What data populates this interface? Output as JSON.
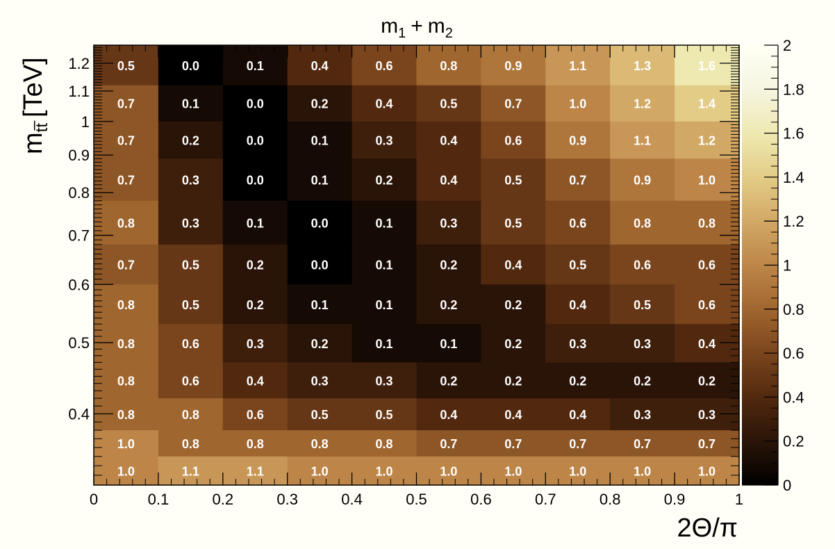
{
  "chart_data": {
    "type": "heatmap",
    "title": "m₁ + m₂",
    "title_parts": {
      "main1": "m",
      "sub1": "1",
      "plus": "+",
      "main2": "m",
      "sub2": "2"
    },
    "xlabel": "2Θ/π",
    "ylabel": "m_tt [TeV]",
    "ylabel_parts": {
      "main": "m",
      "sub": "tt̅",
      "unit": "[TeV]"
    },
    "x_edges": [
      0,
      0.1,
      0.2,
      0.3,
      0.4,
      0.5,
      0.6,
      0.7,
      0.8,
      0.9,
      1.0
    ],
    "xlim": [
      0,
      1
    ],
    "x_ticks": [
      0,
      0.1,
      0.2,
      0.3,
      0.4,
      0.5,
      0.6,
      0.7,
      0.8,
      0.9,
      1
    ],
    "x_tick_labels": [
      "0",
      "0.1",
      "0.2",
      "0.3",
      "0.4",
      "0.5",
      "0.6",
      "0.7",
      "0.8",
      "0.9",
      "1"
    ],
    "y_scale": "log",
    "ylim": [
      0.32,
      1.27
    ],
    "y_edges": [
      0.32,
      0.35,
      0.38,
      0.42,
      0.47,
      0.53,
      0.6,
      0.68,
      0.78,
      0.89,
      1.0,
      1.12,
      1.27
    ],
    "y_ticks": [
      0.4,
      0.5,
      0.6,
      0.7,
      0.8,
      0.9,
      1.0,
      1.1,
      1.2
    ],
    "y_tick_labels": [
      "0.4",
      "0.5",
      "0.6",
      "0.7",
      "0.8",
      "0.9",
      "1",
      "1.1",
      "1.2"
    ],
    "values": [
      [
        0.5,
        0.0,
        0.1,
        0.4,
        0.6,
        0.8,
        0.9,
        1.1,
        1.3,
        1.6
      ],
      [
        0.7,
        0.1,
        0.0,
        0.2,
        0.4,
        0.5,
        0.7,
        1.0,
        1.2,
        1.4
      ],
      [
        0.7,
        0.2,
        0.0,
        0.1,
        0.3,
        0.4,
        0.6,
        0.9,
        1.1,
        1.2
      ],
      [
        0.7,
        0.3,
        0.0,
        0.1,
        0.2,
        0.4,
        0.5,
        0.7,
        0.9,
        1.0
      ],
      [
        0.8,
        0.3,
        0.1,
        0.0,
        0.1,
        0.3,
        0.5,
        0.6,
        0.8,
        0.8
      ],
      [
        0.7,
        0.5,
        0.2,
        0.0,
        0.1,
        0.2,
        0.4,
        0.5,
        0.6,
        0.6
      ],
      [
        0.8,
        0.5,
        0.2,
        0.1,
        0.1,
        0.2,
        0.2,
        0.4,
        0.5,
        0.6
      ],
      [
        0.8,
        0.6,
        0.3,
        0.2,
        0.1,
        0.1,
        0.2,
        0.3,
        0.3,
        0.4
      ],
      [
        0.8,
        0.6,
        0.4,
        0.3,
        0.3,
        0.2,
        0.2,
        0.2,
        0.2,
        0.2
      ],
      [
        0.8,
        0.8,
        0.6,
        0.5,
        0.5,
        0.4,
        0.4,
        0.4,
        0.3,
        0.3
      ],
      [
        1.0,
        0.8,
        0.8,
        0.8,
        0.8,
        0.7,
        0.7,
        0.7,
        0.7,
        0.7
      ],
      [
        1.0,
        1.1,
        1.1,
        1.0,
        1.0,
        1.0,
        1.0,
        1.0,
        1.0,
        1.0
      ]
    ],
    "values_row_order": "top-to-bottom",
    "colorbar": {
      "range": [
        0,
        2
      ],
      "ticks": [
        0,
        0.2,
        0.4,
        0.6,
        0.8,
        1,
        1.2,
        1.4,
        1.6,
        1.8,
        2
      ],
      "tick_labels": [
        "0",
        "0.2",
        "0.4",
        "0.6",
        "0.8",
        "1",
        "1.2",
        "1.4",
        "1.6",
        "1.8",
        "2"
      ],
      "palette": [
        "#000000",
        "#2a1408",
        "#52290f",
        "#7a451d",
        "#a0662f",
        "#bd8648",
        "#d2a865",
        "#e3cc86",
        "#eee9b1",
        "#f6f5e0",
        "#fffff4"
      ]
    },
    "background": "#fffef7"
  }
}
